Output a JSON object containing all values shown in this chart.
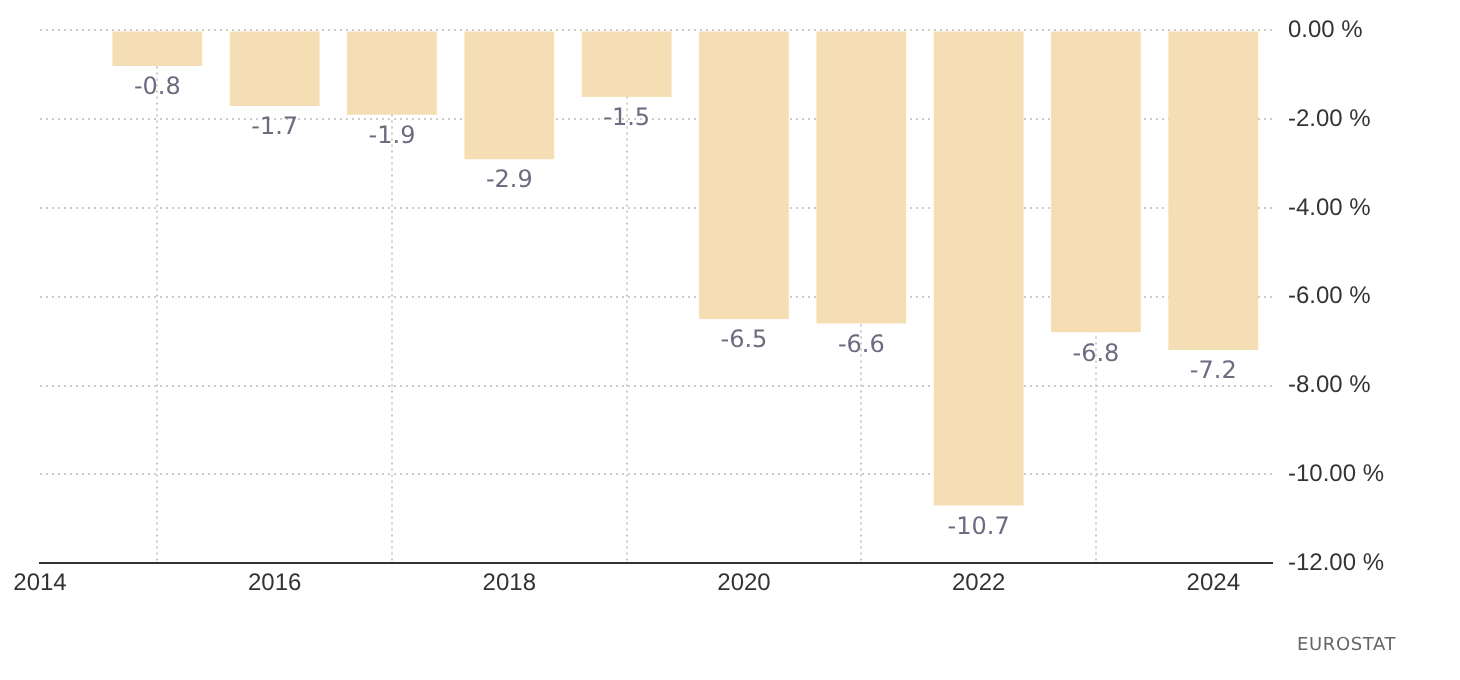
{
  "chart_data": {
    "type": "bar",
    "x": [
      2015,
      2016,
      2017,
      2018,
      2019,
      2020,
      2021,
      2022,
      2023,
      2024
    ],
    "values": [
      -0.8,
      -1.7,
      -1.9,
      -2.9,
      -1.5,
      -6.5,
      -6.6,
      -10.7,
      -6.8,
      -7.2
    ],
    "color": "#f5deb3",
    "xlim": [
      2014,
      2024.5
    ],
    "xticks": [
      2014,
      2016,
      2018,
      2020,
      2022,
      2024
    ],
    "ylim": [
      -12,
      0
    ],
    "yticks": [
      {
        "value": 0,
        "label": "0.00 %"
      },
      {
        "value": -2,
        "label": "-2.00 %"
      },
      {
        "value": -4,
        "label": "-4.00 %"
      },
      {
        "value": -6,
        "label": "-6.00 %"
      },
      {
        "value": -8,
        "label": "-8.00 %"
      },
      {
        "value": -10,
        "label": "-10.00 %"
      },
      {
        "value": -12,
        "label": "-12.00 %"
      }
    ],
    "grid": true,
    "legend": false,
    "data_labels": true,
    "annotations": [
      "EUROSTAT"
    ]
  }
}
